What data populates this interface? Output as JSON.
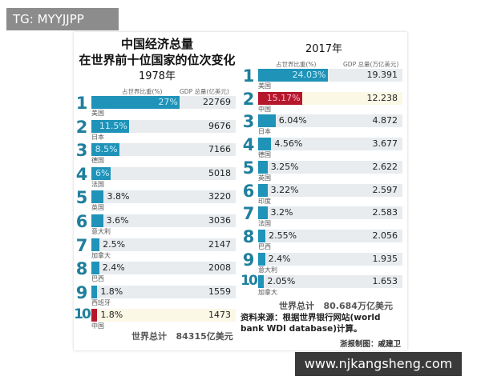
{
  "watermark_top": "TG: MYYJJPP",
  "watermark_bottom": "www.njkangsheng.com",
  "title_line1": "中国经济总量",
  "title_line2": "在世界前十位国家的位次变化",
  "colors": {
    "bar": "#1f93b8",
    "china_bar": "#b5182b",
    "china_track": "#fbf8e6",
    "track": "#e8ecef",
    "rank": "#1f7f9c"
  },
  "chart_data": [
    {
      "type": "bar",
      "title": "1978年",
      "share_label": "占世界比重(%)",
      "gdp_label": "GDP 总量(亿美元)",
      "total_label": "世界总计",
      "total_value": "84315亿美元",
      "rows": [
        {
          "rank": "1",
          "country": "美国",
          "share": 27,
          "share_text": "27%",
          "gdp": "22769"
        },
        {
          "rank": "2",
          "country": "日本",
          "share": 11.5,
          "share_text": "11.5%",
          "gdp": "9676"
        },
        {
          "rank": "3",
          "country": "德国",
          "share": 8.5,
          "share_text": "8.5%",
          "gdp": "7166"
        },
        {
          "rank": "4",
          "country": "法国",
          "share": 6,
          "share_text": "6%",
          "gdp": "5018"
        },
        {
          "rank": "5",
          "country": "英国",
          "share": 3.8,
          "share_text": "3.8%",
          "gdp": "3220"
        },
        {
          "rank": "6",
          "country": "意大利",
          "share": 3.6,
          "share_text": "3.6%",
          "gdp": "3036"
        },
        {
          "rank": "7",
          "country": "加拿大",
          "share": 2.5,
          "share_text": "2.5%",
          "gdp": "2147"
        },
        {
          "rank": "8",
          "country": "巴西",
          "share": 2.4,
          "share_text": "2.4%",
          "gdp": "2008"
        },
        {
          "rank": "9",
          "country": "西班牙",
          "share": 1.8,
          "share_text": "1.8%",
          "gdp": "1559"
        },
        {
          "rank": "10",
          "country": "中国",
          "share": 1.8,
          "share_text": "1.8%",
          "gdp": "1473",
          "highlight": true
        }
      ]
    },
    {
      "type": "bar",
      "title": "2017年",
      "share_label": "占世界比重(%)",
      "gdp_label": "GDP 总量(万亿美元)",
      "total_label": "世界总计",
      "total_value": "80.684万亿美元",
      "rows": [
        {
          "rank": "1",
          "country": "美国",
          "share": 24.03,
          "share_text": "24.03%",
          "gdp": "19.391"
        },
        {
          "rank": "2",
          "country": "中国",
          "share": 15.17,
          "share_text": "15.17%",
          "gdp": "12.238",
          "highlight": true
        },
        {
          "rank": "3",
          "country": "日本",
          "share": 6.04,
          "share_text": "6.04%",
          "gdp": "4.872"
        },
        {
          "rank": "4",
          "country": "德国",
          "share": 4.56,
          "share_text": "4.56%",
          "gdp": "3.677"
        },
        {
          "rank": "5",
          "country": "英国",
          "share": 3.25,
          "share_text": "3.25%",
          "gdp": "2.622"
        },
        {
          "rank": "6",
          "country": "印度",
          "share": 3.22,
          "share_text": "3.22%",
          "gdp": "2.597"
        },
        {
          "rank": "7",
          "country": "法国",
          "share": 3.2,
          "share_text": "3.2%",
          "gdp": "2.583"
        },
        {
          "rank": "8",
          "country": "巴西",
          "share": 2.55,
          "share_text": "2.55%",
          "gdp": "2.056"
        },
        {
          "rank": "9",
          "country": "意大利",
          "share": 2.4,
          "share_text": "2.4%",
          "gdp": "1.935"
        },
        {
          "rank": "10",
          "country": "加拿大",
          "share": 2.05,
          "share_text": "2.05%",
          "gdp": "1.653"
        }
      ]
    }
  ],
  "source": "资料来源：根据世界银行网站(world bank WDI database)计算。",
  "credit": "浙报制图：戚建卫"
}
